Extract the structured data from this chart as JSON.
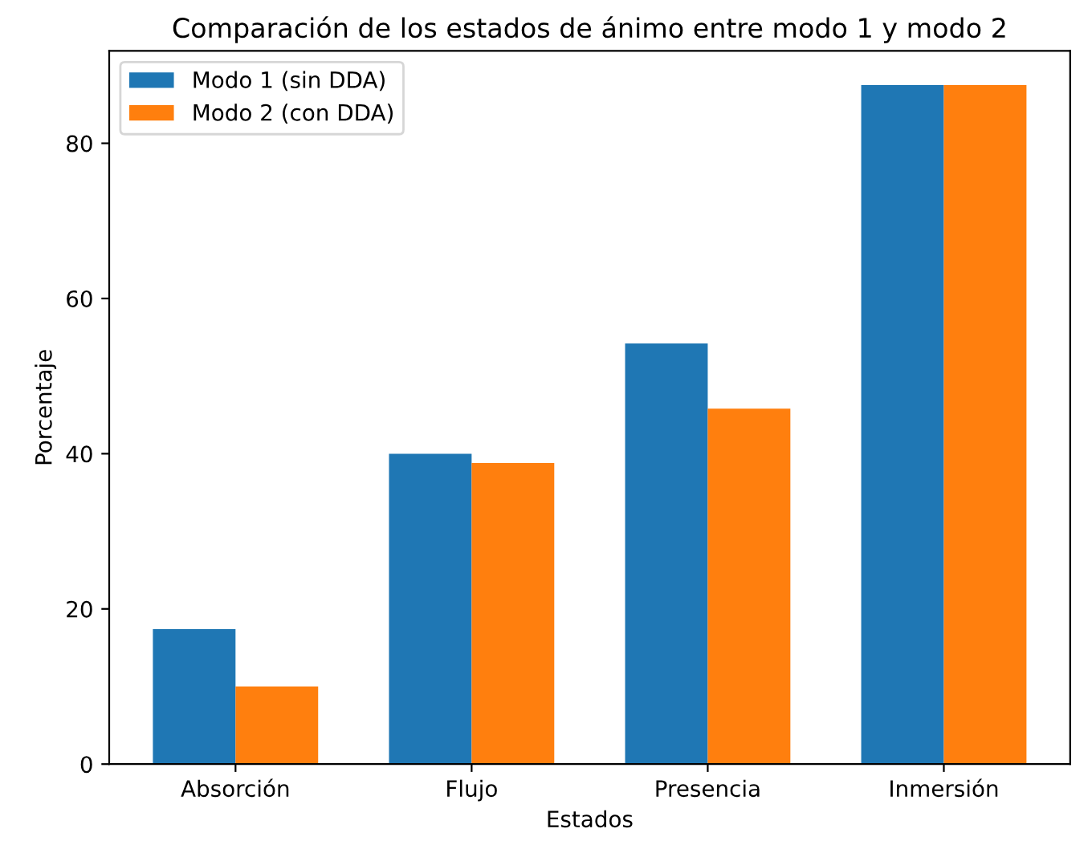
{
  "chart_data": {
    "type": "bar",
    "title": "Comparación de los estados de ánimo entre modo 1 y modo 2",
    "xlabel": "Estados",
    "ylabel": "Porcentaje",
    "categories": [
      "Absorción",
      "Flujo",
      "Presencia",
      "Inmersión"
    ],
    "series": [
      {
        "name": "Modo 1 (sin DDA)",
        "color": "#1f77b4",
        "values": [
          17.4,
          40,
          54.2,
          87.5
        ]
      },
      {
        "name": "Modo 2 (con DDA)",
        "color": "#ff7f0e",
        "values": [
          10,
          38.8,
          45.8,
          87.5
        ]
      }
    ],
    "ylim": [
      0,
      91.9
    ],
    "yticks": [
      0,
      20,
      40,
      60,
      80
    ],
    "legend": "top left",
    "grid": false
  }
}
